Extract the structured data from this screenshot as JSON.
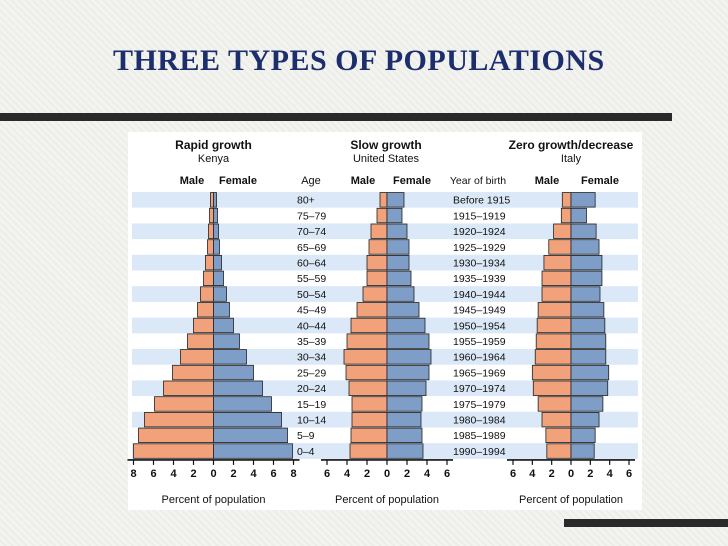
{
  "slide": {
    "title": "THREE TYPES OF POPULATIONS"
  },
  "chart_data": {
    "type": "population-pyramid",
    "age_header": "Age",
    "birth_header": "Year of birth",
    "age_groups": [
      "80+",
      "75–79",
      "70–74",
      "65–69",
      "60–64",
      "55–59",
      "50–54",
      "45–49",
      "40–44",
      "35–39",
      "30–34",
      "25–29",
      "20–24",
      "15–19",
      "10–14",
      "5–9",
      "0–4"
    ],
    "birth_years": [
      "Before 1915",
      "1915–1919",
      "1920–1924",
      "1925–1929",
      "1930–1934",
      "1935–1939",
      "1940–1944",
      "1945–1949",
      "1950–1954",
      "1955–1959",
      "1960–1964",
      "1965–1969",
      "1970–1974",
      "1975–1979",
      "1980–1984",
      "1985–1989",
      "1990–1994"
    ],
    "colors": {
      "male": "#f2a27a",
      "female": "#7f9ec7",
      "outline": "#222222",
      "band": "#dbe8f7",
      "panel": "#ffffff"
    },
    "panels": [
      {
        "title": "Rapid growth",
        "subtitle": "Kenya",
        "male_label": "Male",
        "female_label": "Female",
        "xlabel": "Percent of population",
        "xlim": [
          -8,
          8
        ],
        "ticks": [
          "8",
          "6",
          "4",
          "2",
          "0",
          "2",
          "4",
          "6",
          "8"
        ],
        "male": [
          0.3,
          0.4,
          0.5,
          0.6,
          0.8,
          1.0,
          1.3,
          1.6,
          2.0,
          2.6,
          3.3,
          4.1,
          5.0,
          5.9,
          6.9,
          7.5,
          8.0
        ],
        "female": [
          0.3,
          0.4,
          0.5,
          0.6,
          0.8,
          1.0,
          1.3,
          1.6,
          2.0,
          2.6,
          3.3,
          4.0,
          4.9,
          5.8,
          6.8,
          7.4,
          7.9
        ]
      },
      {
        "title": "Slow growth",
        "subtitle": "United States",
        "male_label": "Male",
        "female_label": "Female",
        "xlabel": "Percent of population",
        "xlim": [
          -6,
          6
        ],
        "ticks": [
          "6",
          "4",
          "2",
          "0",
          "2",
          "4",
          "6"
        ],
        "male": [
          0.7,
          1.0,
          1.6,
          1.8,
          2.0,
          2.0,
          2.4,
          3.0,
          3.6,
          4.0,
          4.3,
          4.1,
          3.8,
          3.5,
          3.5,
          3.6,
          3.7
        ],
        "female": [
          1.7,
          1.5,
          2.0,
          2.2,
          2.2,
          2.4,
          2.7,
          3.2,
          3.8,
          4.2,
          4.4,
          4.2,
          3.9,
          3.5,
          3.4,
          3.5,
          3.6
        ]
      },
      {
        "title": "Zero growth/decrease",
        "subtitle": "Italy",
        "male_label": "Male",
        "female_label": "Female",
        "xlabel": "Percent of population",
        "xlim": [
          -6,
          6
        ],
        "ticks": [
          "6",
          "4",
          "2",
          "0",
          "2",
          "4",
          "6"
        ],
        "male": [
          0.9,
          1.0,
          1.8,
          2.3,
          2.8,
          3.0,
          3.0,
          3.4,
          3.5,
          3.6,
          3.7,
          4.0,
          3.9,
          3.4,
          3.0,
          2.6,
          2.5
        ],
        "female": [
          2.5,
          1.6,
          2.6,
          2.9,
          3.2,
          3.2,
          3.0,
          3.4,
          3.5,
          3.6,
          3.6,
          3.9,
          3.8,
          3.3,
          2.9,
          2.5,
          2.4
        ]
      }
    ]
  }
}
